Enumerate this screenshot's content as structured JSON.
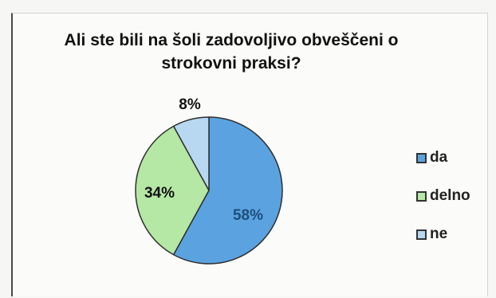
{
  "chart_data": {
    "type": "pie",
    "title_lines": [
      "Ali ste bili na šoli zadovoljivo obveščeni o",
      "strokovni praksi?"
    ],
    "slices": [
      {
        "name": "da",
        "value": 58,
        "label": "58%",
        "color": "#5ba3e0"
      },
      {
        "name": "delno",
        "value": 34,
        "label": "34%",
        "color": "#b4e8a4"
      },
      {
        "name": "ne",
        "value": 8,
        "label": "8%",
        "color": "#b8d8f2"
      }
    ],
    "legend": {
      "position": "right",
      "entries": [
        "da",
        "delno",
        "ne"
      ]
    },
    "label_colors": {
      "da": "#1e4e7a",
      "delno": "#111111",
      "ne": "#111111"
    }
  }
}
